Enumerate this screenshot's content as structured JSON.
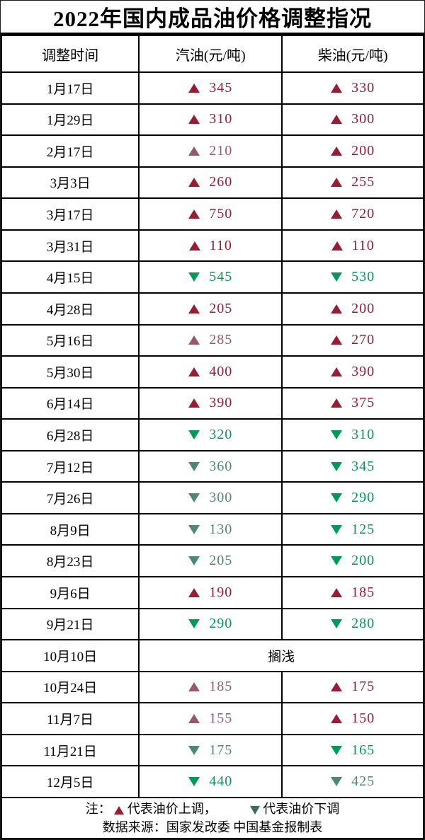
{
  "title": "2022年国内成品油价格调整指况",
  "header": [
    "调整时间",
    "汽油(元/吨)",
    "柴油(元/吨)"
  ],
  "colors": {
    "up": "#9B1B33",
    "up_muted": "#955A6A",
    "down": "#009956",
    "down_muted": "#4E8773",
    "legend_up": "#9B1B33",
    "legend_down": "#3D6E52",
    "border": "#000000",
    "text": "#000000"
  },
  "rows": [
    {
      "date": "1月17日",
      "cells": [
        {
          "dir": "up",
          "value": "345",
          "tone": "vivid"
        },
        {
          "dir": "up",
          "value": "330",
          "tone": "vivid"
        }
      ]
    },
    {
      "date": "1月29日",
      "cells": [
        {
          "dir": "up",
          "value": "310",
          "tone": "vivid"
        },
        {
          "dir": "up",
          "value": "300",
          "tone": "vivid"
        }
      ]
    },
    {
      "date": "2月17日",
      "cells": [
        {
          "dir": "up",
          "value": "210",
          "tone": "muted"
        },
        {
          "dir": "up",
          "value": "200",
          "tone": "vivid"
        }
      ]
    },
    {
      "date": "3月3日",
      "cells": [
        {
          "dir": "up",
          "value": "260",
          "tone": "vivid"
        },
        {
          "dir": "up",
          "value": "255",
          "tone": "vivid"
        }
      ]
    },
    {
      "date": "3月17日",
      "cells": [
        {
          "dir": "up",
          "value": "750",
          "tone": "vivid"
        },
        {
          "dir": "up",
          "value": "720",
          "tone": "vivid"
        }
      ]
    },
    {
      "date": "3月31日",
      "cells": [
        {
          "dir": "up",
          "value": "110",
          "tone": "vivid"
        },
        {
          "dir": "up",
          "value": "110",
          "tone": "vivid"
        }
      ]
    },
    {
      "date": "4月15日",
      "cells": [
        {
          "dir": "down",
          "value": "545",
          "tone": "vivid"
        },
        {
          "dir": "down",
          "value": "530",
          "tone": "vivid"
        }
      ]
    },
    {
      "date": "4月28日",
      "cells": [
        {
          "dir": "up",
          "value": "205",
          "tone": "vivid"
        },
        {
          "dir": "up",
          "value": "200",
          "tone": "vivid"
        }
      ]
    },
    {
      "date": "5月16日",
      "cells": [
        {
          "dir": "up",
          "value": "285",
          "tone": "muted"
        },
        {
          "dir": "up",
          "value": "270",
          "tone": "vivid"
        }
      ]
    },
    {
      "date": "5月30日",
      "cells": [
        {
          "dir": "up",
          "value": "400",
          "tone": "vivid"
        },
        {
          "dir": "up",
          "value": "390",
          "tone": "vivid"
        }
      ]
    },
    {
      "date": "6月14日",
      "cells": [
        {
          "dir": "up",
          "value": "390",
          "tone": "vivid"
        },
        {
          "dir": "up",
          "value": "375",
          "tone": "vivid"
        }
      ]
    },
    {
      "date": "6月28日",
      "cells": [
        {
          "dir": "down",
          "value": "320",
          "tone": "vivid"
        },
        {
          "dir": "down",
          "value": "310",
          "tone": "vivid"
        }
      ]
    },
    {
      "date": "7月12日",
      "cells": [
        {
          "dir": "down",
          "value": "360",
          "tone": "muted"
        },
        {
          "dir": "down",
          "value": "345",
          "tone": "vivid"
        }
      ]
    },
    {
      "date": "7月26日",
      "cells": [
        {
          "dir": "down",
          "value": "300",
          "tone": "muted"
        },
        {
          "dir": "down",
          "value": "290",
          "tone": "vivid"
        }
      ]
    },
    {
      "date": "8月9日",
      "cells": [
        {
          "dir": "down",
          "value": "130",
          "tone": "muted"
        },
        {
          "dir": "down",
          "value": "125",
          "tone": "vivid"
        }
      ]
    },
    {
      "date": "8月23日",
      "cells": [
        {
          "dir": "down",
          "value": "205",
          "tone": "muted"
        },
        {
          "dir": "down",
          "value": "200",
          "tone": "vivid"
        }
      ]
    },
    {
      "date": "9月6日",
      "cells": [
        {
          "dir": "up",
          "value": "190",
          "tone": "vivid"
        },
        {
          "dir": "up",
          "value": "185",
          "tone": "vivid"
        }
      ]
    },
    {
      "date": "9月21日",
      "cells": [
        {
          "dir": "down",
          "value": "290",
          "tone": "vivid"
        },
        {
          "dir": "down",
          "value": "280",
          "tone": "vivid"
        }
      ]
    },
    {
      "date": "10月10日",
      "merged": "搁浅"
    },
    {
      "date": "10月24日",
      "cells": [
        {
          "dir": "up",
          "value": "185",
          "tone": "muted"
        },
        {
          "dir": "up",
          "value": "175",
          "tone": "vivid"
        }
      ]
    },
    {
      "date": "11月7日",
      "cells": [
        {
          "dir": "up",
          "value": "155",
          "tone": "muted"
        },
        {
          "dir": "up",
          "value": "150",
          "tone": "vivid"
        }
      ]
    },
    {
      "date": "11月21日",
      "cells": [
        {
          "dir": "down",
          "value": "175",
          "tone": "muted"
        },
        {
          "dir": "down",
          "value": "165",
          "tone": "vivid"
        }
      ]
    },
    {
      "date": "12月5日",
      "cells": [
        {
          "dir": "down",
          "value": "440",
          "tone": "vivid"
        },
        {
          "dir": "down",
          "value": "425",
          "tone": "muted"
        }
      ]
    }
  ],
  "note": {
    "prefix": "注：",
    "up_text": "代表油价上调，",
    "down_text": "代表油价下调",
    "source": "数据来源：国家发改委  中国基金报制表"
  },
  "chart_data": {
    "type": "table",
    "title": "2022年国内成品油价格调整指况",
    "columns": [
      "调整时间",
      "汽油(元/吨)",
      "柴油(元/吨)"
    ],
    "rows": [
      [
        "1月17日",
        "+345",
        "+330"
      ],
      [
        "1月29日",
        "+310",
        "+300"
      ],
      [
        "2月17日",
        "+210",
        "+200"
      ],
      [
        "3月3日",
        "+260",
        "+255"
      ],
      [
        "3月17日",
        "+750",
        "+720"
      ],
      [
        "3月31日",
        "+110",
        "+110"
      ],
      [
        "4月15日",
        "-545",
        "-530"
      ],
      [
        "4月28日",
        "+205",
        "+200"
      ],
      [
        "5月16日",
        "+285",
        "+270"
      ],
      [
        "5月30日",
        "+400",
        "+390"
      ],
      [
        "6月14日",
        "+390",
        "+375"
      ],
      [
        "6月28日",
        "-320",
        "-310"
      ],
      [
        "7月12日",
        "-360",
        "-345"
      ],
      [
        "7月26日",
        "-300",
        "-290"
      ],
      [
        "8月9日",
        "-130",
        "-125"
      ],
      [
        "8月23日",
        "-205",
        "-200"
      ],
      [
        "9月6日",
        "+190",
        "+185"
      ],
      [
        "9月21日",
        "-290",
        "-280"
      ],
      [
        "10月10日",
        "搁浅",
        "搁浅"
      ],
      [
        "10月24日",
        "+185",
        "+175"
      ],
      [
        "11月7日",
        "+155",
        "+150"
      ],
      [
        "11月21日",
        "-175",
        "-165"
      ],
      [
        "12月5日",
        "-440",
        "-425"
      ]
    ],
    "legend": "▲代表油价上调，▼代表油价下调",
    "source": "数据来源：国家发改委 中国基金报制表"
  }
}
